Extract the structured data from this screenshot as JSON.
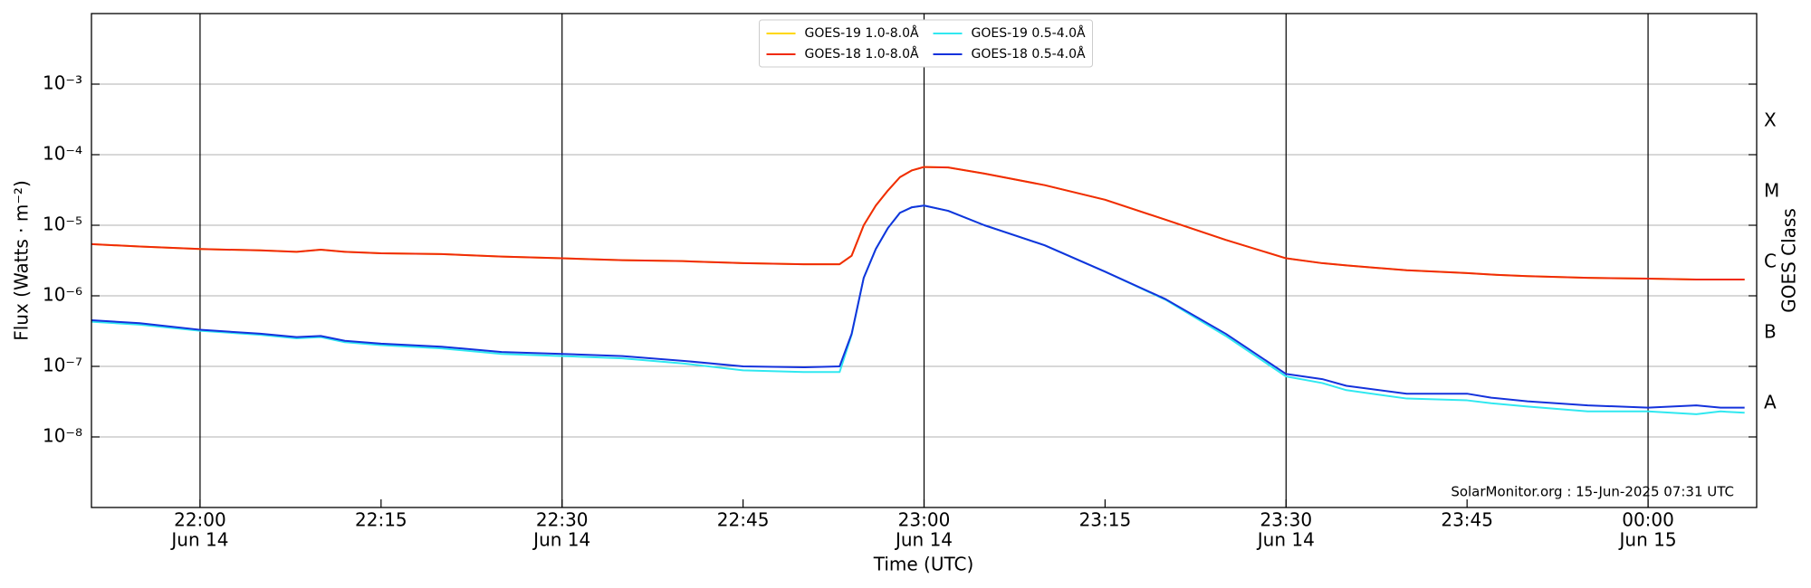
{
  "chart_data": {
    "type": "line",
    "ylabel": "Flux (Watts · m⁻²)",
    "xlabel": "Time (UTC)",
    "y2label": "GOES Class",
    "annotation": "SolarMonitor.org : 15-Jun-2025 07:31 UTC",
    "log_scale": true,
    "grid": true,
    "legend": "upper center",
    "xlim": [
      "Jun 14 21:51",
      "Jun 15 00:09"
    ],
    "ylim": [
      1e-09,
      0.01
    ],
    "y2lim": [
      1e-09,
      0.01
    ],
    "yticks": [
      {
        "value": 1e-08,
        "label": "10⁻⁸"
      },
      {
        "value": 1e-07,
        "label": "10⁻⁷"
      },
      {
        "value": 1e-06,
        "label": "10⁻⁶"
      },
      {
        "value": 1e-05,
        "label": "10⁻⁵"
      },
      {
        "value": 0.0001,
        "label": "10⁻⁴"
      },
      {
        "value": 0.001,
        "label": "10⁻³"
      }
    ],
    "y2ticks": [
      {
        "value": 3e-08,
        "label": "A"
      },
      {
        "value": 3e-07,
        "label": "B"
      },
      {
        "value": 3e-06,
        "label": "C"
      },
      {
        "value": 3e-05,
        "label": "M"
      },
      {
        "value": 0.0003,
        "label": "X"
      }
    ],
    "xticks": [
      {
        "value": "Jun 14 22:00",
        "label": "22:00",
        "date": "Jun 14"
      },
      {
        "value": "Jun 14 22:15",
        "label": "22:15"
      },
      {
        "value": "Jun 14 22:30",
        "label": "22:30",
        "date": "Jun 14"
      },
      {
        "value": "Jun 14 22:45",
        "label": "22:45"
      },
      {
        "value": "Jun 14 23:00",
        "label": "23:00",
        "date": "Jun 14"
      },
      {
        "value": "Jun 14 23:15",
        "label": "23:15"
      },
      {
        "value": "Jun 14 23:30",
        "label": "23:30",
        "date": "Jun 14"
      },
      {
        "value": "Jun 14 23:45",
        "label": "23:45"
      },
      {
        "value": "Jun 15 00:00",
        "label": "00:00",
        "date": "Jun 15"
      }
    ],
    "x": [
      "Jun 14 21:51",
      "Jun 14 21:55",
      "Jun 14 22:00",
      "Jun 14 22:05",
      "Jun 14 22:08",
      "Jun 14 22:10",
      "Jun 14 22:12",
      "Jun 14 22:15",
      "Jun 14 22:20",
      "Jun 14 22:25",
      "Jun 14 22:30",
      "Jun 14 22:35",
      "Jun 14 22:40",
      "Jun 14 22:45",
      "Jun 14 22:50",
      "Jun 14 22:53",
      "Jun 14 22:54",
      "Jun 14 22:55",
      "Jun 14 22:56",
      "Jun 14 22:57",
      "Jun 14 22:58",
      "Jun 14 22:59",
      "Jun 14 23:00",
      "Jun 14 23:02",
      "Jun 14 23:05",
      "Jun 14 23:10",
      "Jun 14 23:15",
      "Jun 14 23:20",
      "Jun 14 23:25",
      "Jun 14 23:30",
      "Jun 14 23:33",
      "Jun 14 23:35",
      "Jun 14 23:40",
      "Jun 14 23:45",
      "Jun 14 23:47",
      "Jun 14 23:50",
      "Jun 14 23:55",
      "Jun 15 00:00",
      "Jun 15 00:04",
      "Jun 15 00:06",
      "Jun 15 00:08"
    ],
    "series": [
      {
        "name": "GOES-19 1.0-8.0Å",
        "color": "#ffd700",
        "values": [
          5.4e-06,
          5e-06,
          4.6e-06,
          4.4e-06,
          4.2e-06,
          4.5e-06,
          4.2e-06,
          4e-06,
          3.9e-06,
          3.6e-06,
          3.4e-06,
          3.2e-06,
          3.1e-06,
          2.9e-06,
          2.8e-06,
          2.8e-06,
          3.7e-06,
          1e-05,
          1.9e-05,
          3.1e-05,
          4.8e-05,
          6e-05,
          6.7e-05,
          6.6e-05,
          5.4e-05,
          3.7e-05,
          2.3e-05,
          1.2e-05,
          6.2e-06,
          3.4e-06,
          2.9e-06,
          2.7e-06,
          2.3e-06,
          2.1e-06,
          2e-06,
          1.9e-06,
          1.8e-06,
          1.75e-06,
          1.7e-06,
          1.7e-06,
          1.7e-06
        ]
      },
      {
        "name": "GOES-18 1.0-8.0Å",
        "color": "#f02a0a",
        "values": [
          5.4e-06,
          5e-06,
          4.6e-06,
          4.4e-06,
          4.2e-06,
          4.5e-06,
          4.2e-06,
          4e-06,
          3.9e-06,
          3.6e-06,
          3.4e-06,
          3.2e-06,
          3.1e-06,
          2.9e-06,
          2.8e-06,
          2.8e-06,
          3.7e-06,
          1e-05,
          1.9e-05,
          3.1e-05,
          4.8e-05,
          6e-05,
          6.7e-05,
          6.6e-05,
          5.4e-05,
          3.7e-05,
          2.3e-05,
          1.2e-05,
          6.2e-06,
          3.4e-06,
          2.9e-06,
          2.7e-06,
          2.3e-06,
          2.1e-06,
          2e-06,
          1.9e-06,
          1.8e-06,
          1.75e-06,
          1.7e-06,
          1.7e-06,
          1.7e-06
        ]
      },
      {
        "name": "GOES-19 0.5-4.0Å",
        "color": "#30e8f0",
        "values": [
          4.3e-07,
          3.9e-07,
          3.2e-07,
          2.8e-07,
          2.5e-07,
          2.6e-07,
          2.2e-07,
          2e-07,
          1.8e-07,
          1.5e-07,
          1.4e-07,
          1.3e-07,
          1.1e-07,
          8.8e-08,
          8.3e-08,
          8.3e-08,
          2.8e-07,
          1.8e-06,
          4.6e-06,
          9.1e-06,
          1.5e-05,
          1.8e-05,
          1.9e-05,
          1.6e-05,
          1e-05,
          5.2e-06,
          2.2e-06,
          8.8e-07,
          2.7e-07,
          7.2e-08,
          5.8e-08,
          4.6e-08,
          3.5e-08,
          3.3e-08,
          3e-08,
          2.7e-08,
          2.3e-08,
          2.3e-08,
          2.1e-08,
          2.3e-08,
          2.2e-08
        ]
      },
      {
        "name": "GOES-18 0.5-4.0Å",
        "color": "#1432dc",
        "values": [
          4.5e-07,
          4.1e-07,
          3.3e-07,
          2.9e-07,
          2.6e-07,
          2.7e-07,
          2.3e-07,
          2.1e-07,
          1.9e-07,
          1.6e-07,
          1.5e-07,
          1.4e-07,
          1.2e-07,
          1e-07,
          9.7e-08,
          1e-07,
          2.9e-07,
          1.8e-06,
          4.6e-06,
          9.1e-06,
          1.5e-05,
          1.8e-05,
          1.9e-05,
          1.6e-05,
          1e-05,
          5.2e-06,
          2.2e-06,
          9e-07,
          2.9e-07,
          7.8e-08,
          6.6e-08,
          5.3e-08,
          4.1e-08,
          4.1e-08,
          3.6e-08,
          3.2e-08,
          2.8e-08,
          2.6e-08,
          2.8e-08,
          2.6e-08,
          2.6e-08
        ]
      }
    ]
  }
}
